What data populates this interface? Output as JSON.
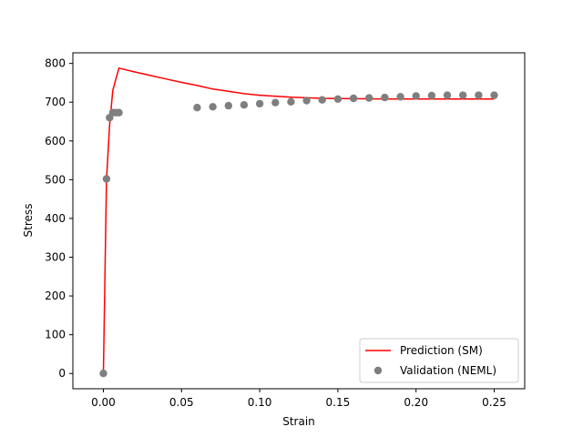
{
  "chart_data": {
    "type": "line",
    "xlabel": "Strain",
    "ylabel": "Stress",
    "xlim": [
      -0.0195,
      0.2695
    ],
    "ylim": [
      -39.4,
      827.4
    ],
    "xticks": [
      0.0,
      0.05,
      0.1,
      0.15,
      0.2,
      0.25
    ],
    "xtick_labels": [
      "0.00",
      "0.05",
      "0.10",
      "0.15",
      "0.20",
      "0.25"
    ],
    "yticks": [
      0,
      100,
      200,
      300,
      400,
      500,
      600,
      700,
      800
    ],
    "ytick_labels": [
      "0",
      "100",
      "200",
      "300",
      "400",
      "500",
      "600",
      "700",
      "800"
    ],
    "grid": false,
    "legend_position": "lower-right",
    "series": [
      {
        "name": "Prediction (SM)",
        "kind": "line",
        "color": "#ff0000",
        "x": [
          0.0,
          0.001,
          0.002,
          0.004,
          0.006,
          0.008,
          0.01,
          0.02,
          0.03,
          0.04,
          0.05,
          0.06,
          0.07,
          0.08,
          0.09,
          0.1,
          0.12,
          0.14,
          0.16,
          0.18,
          0.2,
          0.22,
          0.24,
          0.25
        ],
        "y": [
          0,
          250,
          500,
          640,
          730,
          760,
          788,
          778,
          769,
          760,
          751,
          743,
          734,
          728,
          722,
          718,
          713,
          710,
          709,
          708,
          708,
          708,
          708,
          708
        ]
      },
      {
        "name": "Validation (NEML)",
        "kind": "scatter",
        "color": "#7f7f7f",
        "x": [
          0.0,
          0.002,
          0.004,
          0.006,
          0.008,
          0.01,
          0.06,
          0.07,
          0.08,
          0.09,
          0.1,
          0.11,
          0.12,
          0.13,
          0.14,
          0.15,
          0.16,
          0.17,
          0.18,
          0.19,
          0.2,
          0.21,
          0.22,
          0.23,
          0.24,
          0.25
        ],
        "y": [
          0,
          502,
          660,
          673,
          673,
          673,
          686,
          688,
          691,
          693,
          696,
          699,
          701,
          704,
          706,
          708,
          710,
          711,
          712,
          714,
          716,
          717,
          718,
          718,
          718,
          718
        ]
      }
    ]
  }
}
